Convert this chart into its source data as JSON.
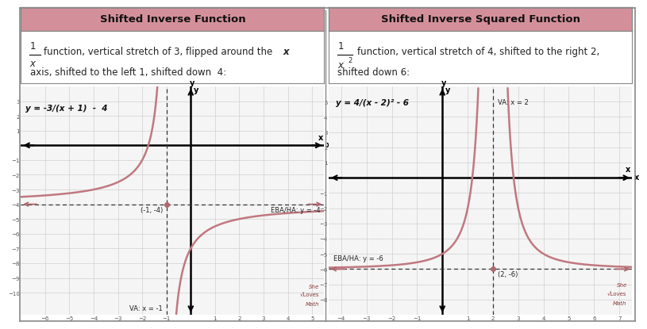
{
  "panel1": {
    "title": "Shifted Inverse Function",
    "header_color": "#d4909a",
    "equation": "y = -3/(x + 1)  -  4",
    "va_x": -1,
    "ha_y": -4,
    "va_label": "VA: x = -1",
    "ha_label": "EBA/HA: y = -4",
    "point_label": "(-1, -4)",
    "xlim": [
      -7,
      5.5
    ],
    "ylim": [
      -11.5,
      4
    ],
    "xtick_vals": [
      -6,
      -5,
      -4,
      -3,
      -2,
      -1,
      1,
      2,
      3,
      4,
      5
    ],
    "ytick_vals": [
      -10,
      -9,
      -8,
      -7,
      -6,
      -5,
      -4,
      -3,
      -2,
      -1,
      1,
      2,
      3
    ],
    "curve_color": "#c07880",
    "grid_color": "#d0d0d0",
    "arrow_color": "#b06870"
  },
  "panel2": {
    "title": "Shifted Inverse Squared Function",
    "header_color": "#d4909a",
    "equation": "y = 4/(x - 2)² - 6",
    "va_x": 2,
    "ha_y": -6,
    "va_label": "VA: x = 2",
    "ha_label": "EBA/HA: y = -6",
    "point_label": "(2, -6)",
    "xlim": [
      -4.5,
      7.5
    ],
    "ylim": [
      -9,
      6
    ],
    "xtick_vals": [
      -4,
      -3,
      -2,
      -1,
      1,
      2,
      3,
      4,
      5,
      6,
      7
    ],
    "ytick_vals": [
      -8,
      -7,
      -6,
      -5,
      -4,
      -3,
      -2,
      -1,
      1,
      2,
      3,
      4,
      5
    ],
    "curve_color": "#c07880",
    "grid_color": "#d0d0d0",
    "arrow_color": "#b06870"
  },
  "header_color": "#d4909a",
  "border_color": "#888888",
  "bg_color": "#ffffff",
  "text_color": "#222222"
}
